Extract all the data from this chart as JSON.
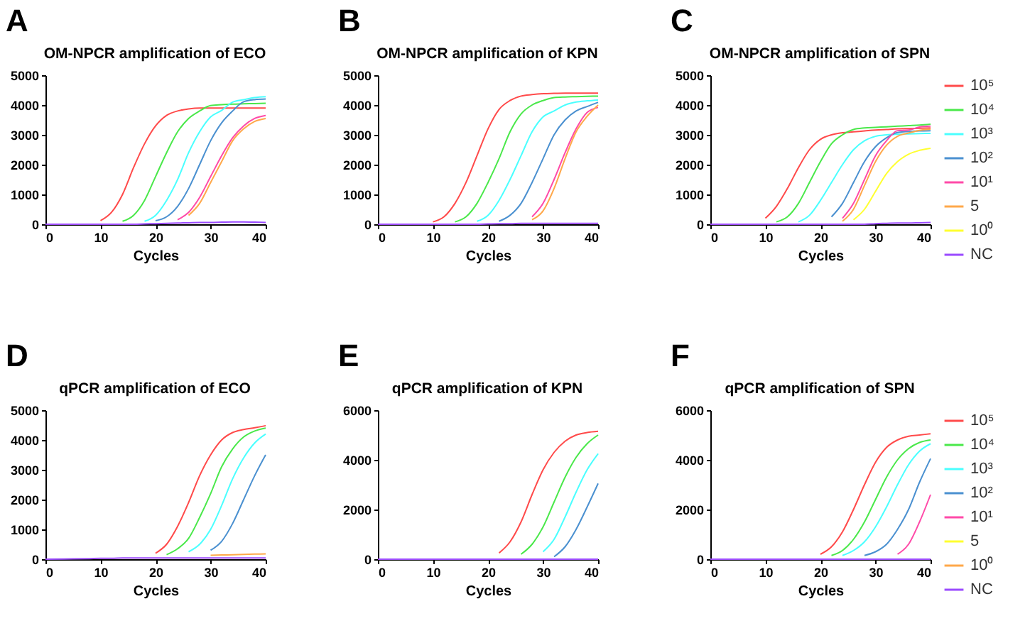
{
  "chart_data": [
    {
      "type": "line",
      "title": "OM-NPCR amplification of ECO",
      "xlabel": "Cycles",
      "annotations": [
        "A"
      ],
      "xlim": [
        0,
        40
      ],
      "xticks": [
        0,
        10,
        20,
        30,
        40
      ],
      "ylim": [
        0,
        5000
      ],
      "yticks": [
        0,
        1000,
        2000,
        3000,
        4000,
        5000
      ],
      "x": [
        0,
        5,
        8,
        10,
        12,
        14,
        16,
        18,
        20,
        22,
        24,
        26,
        28,
        30,
        32,
        34,
        36,
        38,
        40
      ],
      "series": [
        {
          "color": "#ff4a4a",
          "values": [
            null,
            null,
            null,
            120,
            400,
            1000,
            1900,
            2700,
            3300,
            3650,
            3800,
            3870,
            3900,
            3900,
            3900,
            3900,
            3900,
            3900,
            3900
          ]
        },
        {
          "color": "#4ae84a",
          "values": [
            null,
            null,
            null,
            null,
            null,
            100,
            300,
            800,
            1600,
            2400,
            3100,
            3550,
            3800,
            3980,
            4010,
            4030,
            4040,
            4050,
            4060
          ]
        },
        {
          "color": "#4affff",
          "values": [
            null,
            null,
            null,
            null,
            null,
            null,
            null,
            100,
            300,
            800,
            1500,
            2400,
            3100,
            3600,
            3820,
            4100,
            4180,
            4250,
            4280
          ]
        },
        {
          "color": "#4a90d0",
          "values": [
            null,
            null,
            null,
            null,
            null,
            null,
            null,
            null,
            120,
            250,
            600,
            1200,
            2000,
            2800,
            3400,
            3800,
            4110,
            4180,
            4200
          ]
        },
        {
          "color": "#ff4aa8",
          "values": [
            null,
            null,
            null,
            null,
            null,
            null,
            null,
            null,
            null,
            null,
            150,
            400,
            900,
            1600,
            2300,
            2900,
            3300,
            3550,
            3650
          ]
        },
        {
          "color": "#ffa84a",
          "values": [
            null,
            null,
            null,
            null,
            null,
            null,
            null,
            null,
            null,
            null,
            null,
            300,
            700,
            1400,
            2100,
            2800,
            3200,
            3450,
            3550
          ]
        },
        {
          "color": "#9a4aff",
          "values": [
            0,
            0,
            0,
            0,
            0,
            0,
            0,
            10,
            20,
            30,
            40,
            50,
            60,
            60,
            70,
            80,
            80,
            70,
            60
          ]
        }
      ]
    },
    {
      "type": "line",
      "title": "OM-NPCR amplification of KPN",
      "xlabel": "Cycles",
      "annotations": [
        "B"
      ],
      "xlim": [
        0,
        40
      ],
      "xticks": [
        0,
        10,
        20,
        30,
        40
      ],
      "ylim": [
        0,
        5000
      ],
      "yticks": [
        0,
        1000,
        2000,
        3000,
        4000,
        5000
      ],
      "x": [
        0,
        5,
        8,
        10,
        12,
        14,
        16,
        18,
        20,
        22,
        24,
        26,
        28,
        30,
        32,
        34,
        36,
        38,
        40
      ],
      "series": [
        {
          "color": "#ff4a4a",
          "values": [
            null,
            null,
            null,
            80,
            250,
            700,
            1400,
            2300,
            3200,
            3850,
            4150,
            4300,
            4350,
            4380,
            4390,
            4400,
            4400,
            4400,
            4400
          ]
        },
        {
          "color": "#4ae84a",
          "values": [
            null,
            null,
            null,
            null,
            null,
            80,
            250,
            700,
            1400,
            2200,
            3100,
            3700,
            4000,
            4150,
            4250,
            4270,
            4280,
            4290,
            4300
          ]
        },
        {
          "color": "#4affff",
          "values": [
            null,
            null,
            null,
            null,
            null,
            null,
            null,
            100,
            300,
            800,
            1500,
            2300,
            3100,
            3600,
            3800,
            4000,
            4100,
            4140,
            4170
          ]
        },
        {
          "color": "#4a90d0",
          "values": [
            null,
            null,
            null,
            null,
            null,
            null,
            null,
            null,
            null,
            100,
            300,
            700,
            1400,
            2200,
            3000,
            3500,
            3800,
            3950,
            4090
          ]
        },
        {
          "color": "#ff4aa8",
          "values": [
            null,
            null,
            null,
            null,
            null,
            null,
            null,
            null,
            null,
            null,
            null,
            null,
            250,
            700,
            1500,
            2400,
            3200,
            3750,
            3920
          ]
        },
        {
          "color": "#ffa84a",
          "values": [
            null,
            null,
            null,
            null,
            null,
            null,
            null,
            null,
            null,
            null,
            null,
            null,
            150,
            450,
            1200,
            2200,
            3100,
            3620,
            4000
          ]
        },
        {
          "color": "#9a4aff",
          "values": [
            0,
            0,
            0,
            0,
            0,
            0,
            0,
            0,
            10,
            20,
            20,
            30,
            30,
            30,
            30,
            30,
            30,
            30,
            30
          ]
        }
      ]
    },
    {
      "type": "line",
      "title": "OM-NPCR amplification of SPN",
      "xlabel": "Cycles",
      "annotations": [
        "C"
      ],
      "legend": "right",
      "xlim": [
        0,
        40
      ],
      "xticks": [
        0,
        10,
        20,
        30,
        40
      ],
      "ylim": [
        0,
        5000
      ],
      "yticks": [
        0,
        1000,
        2000,
        3000,
        4000,
        5000
      ],
      "x": [
        0,
        5,
        8,
        10,
        12,
        14,
        16,
        18,
        20,
        22,
        24,
        26,
        28,
        30,
        32,
        34,
        36,
        38,
        40
      ],
      "series": [
        {
          "name": "10⁵",
          "color": "#ff4a4a",
          "values": [
            null,
            null,
            null,
            200,
            600,
            1200,
            1900,
            2500,
            2850,
            3000,
            3070,
            3100,
            3130,
            3160,
            3180,
            3200,
            3210,
            3220,
            3230
          ]
        },
        {
          "name": "10⁴",
          "color": "#4ae84a",
          "values": [
            null,
            null,
            null,
            null,
            80,
            250,
            700,
            1400,
            2100,
            2700,
            3000,
            3180,
            3230,
            3250,
            3270,
            3290,
            3310,
            3330,
            3360
          ]
        },
        {
          "name": "10³",
          "color": "#4affff",
          "values": [
            null,
            null,
            null,
            null,
            null,
            null,
            80,
            300,
            800,
            1400,
            2000,
            2500,
            2800,
            2950,
            3000,
            3020,
            3030,
            3040,
            3050
          ]
        },
        {
          "name": "10²",
          "color": "#4a90d0",
          "values": [
            null,
            null,
            null,
            null,
            null,
            null,
            null,
            null,
            null,
            250,
            700,
            1400,
            2100,
            2600,
            2900,
            3080,
            3110,
            3130,
            3140
          ]
        },
        {
          "name": "10¹",
          "color": "#ff4aa8",
          "values": [
            null,
            null,
            null,
            null,
            null,
            null,
            null,
            null,
            null,
            null,
            200,
            700,
            1500,
            2300,
            2800,
            3140,
            3160,
            3260,
            3290
          ]
        },
        {
          "name": "5",
          "color": "#ffa84a",
          "values": [
            null,
            null,
            null,
            null,
            null,
            null,
            null,
            null,
            null,
            null,
            100,
            500,
            1300,
            2100,
            2650,
            2950,
            3060,
            3150,
            3190
          ]
        },
        {
          "name": "10⁰",
          "color": "#ffff30",
          "values": [
            null,
            null,
            null,
            null,
            null,
            null,
            null,
            null,
            null,
            null,
            null,
            150,
            500,
            1100,
            1700,
            2100,
            2350,
            2480,
            2550
          ]
        },
        {
          "name": "NC",
          "color": "#9a4aff",
          "values": [
            0,
            0,
            0,
            0,
            0,
            0,
            0,
            0,
            0,
            0,
            0,
            0,
            0,
            20,
            30,
            40,
            40,
            50,
            60
          ]
        }
      ]
    },
    {
      "type": "line",
      "title": "qPCR amplification of ECO",
      "xlabel": "Cycles",
      "annotations": [
        "D"
      ],
      "xlim": [
        0,
        40
      ],
      "xticks": [
        0,
        10,
        20,
        30,
        40
      ],
      "ylim": [
        0,
        5000
      ],
      "yticks": [
        0,
        1000,
        2000,
        3000,
        4000,
        5000
      ],
      "x": [
        0,
        5,
        8,
        10,
        12,
        14,
        16,
        18,
        20,
        22,
        24,
        26,
        28,
        30,
        32,
        34,
        36,
        38,
        40
      ],
      "series": [
        {
          "color": "#ff4a4a",
          "values": [
            null,
            null,
            null,
            null,
            null,
            null,
            null,
            null,
            200,
            500,
            1100,
            1900,
            2800,
            3500,
            4000,
            4250,
            4350,
            4410,
            4480
          ]
        },
        {
          "color": "#4ae84a",
          "values": [
            null,
            null,
            null,
            null,
            null,
            null,
            null,
            null,
            null,
            150,
            350,
            700,
            1400,
            2200,
            3100,
            3700,
            4100,
            4300,
            4400
          ]
        },
        {
          "color": "#4affff",
          "values": [
            null,
            null,
            null,
            null,
            null,
            null,
            null,
            null,
            null,
            null,
            null,
            250,
            500,
            1000,
            1800,
            2700,
            3400,
            3900,
            4200
          ]
        },
        {
          "color": "#4a90d0",
          "values": [
            null,
            null,
            null,
            null,
            null,
            null,
            null,
            null,
            null,
            null,
            null,
            null,
            null,
            300,
            600,
            1200,
            2000,
            2800,
            3500
          ]
        },
        {
          "color": "#ffa84a",
          "values": [
            null,
            null,
            null,
            null,
            null,
            null,
            null,
            null,
            null,
            null,
            null,
            null,
            null,
            130,
            140,
            150,
            160,
            170,
            180
          ]
        },
        {
          "color": "#9a4aff",
          "values": [
            0,
            10,
            20,
            30,
            30,
            40,
            40,
            40,
            40,
            40,
            40,
            40,
            40,
            40,
            40,
            40,
            40,
            40,
            40
          ]
        }
      ]
    },
    {
      "type": "line",
      "title": "qPCR amplification of KPN",
      "xlabel": "Cycles",
      "annotations": [
        "E"
      ],
      "xlim": [
        0,
        40
      ],
      "xticks": [
        0,
        10,
        20,
        30,
        40
      ],
      "ylim": [
        0,
        6000
      ],
      "yticks": [
        0,
        2000,
        4000,
        6000
      ],
      "x": [
        0,
        5,
        8,
        10,
        12,
        14,
        16,
        18,
        20,
        22,
        24,
        26,
        28,
        30,
        32,
        34,
        36,
        38,
        40
      ],
      "series": [
        {
          "color": "#ff4a4a",
          "values": [
            null,
            null,
            null,
            null,
            null,
            null,
            null,
            null,
            null,
            250,
            700,
            1500,
            2600,
            3600,
            4300,
            4750,
            5000,
            5100,
            5150
          ]
        },
        {
          "color": "#4ae84a",
          "values": [
            null,
            null,
            null,
            null,
            null,
            null,
            null,
            null,
            null,
            null,
            null,
            200,
            600,
            1300,
            2300,
            3300,
            4100,
            4650,
            5000
          ]
        },
        {
          "color": "#4affff",
          "values": [
            null,
            null,
            null,
            null,
            null,
            null,
            null,
            null,
            null,
            null,
            null,
            null,
            null,
            300,
            800,
            1700,
            2700,
            3600,
            4250
          ]
        },
        {
          "color": "#4a90d0",
          "values": [
            null,
            null,
            null,
            null,
            null,
            null,
            null,
            null,
            null,
            null,
            null,
            null,
            null,
            null,
            100,
            500,
            1200,
            2100,
            3050
          ]
        },
        {
          "color": "#9a4aff",
          "values": [
            0,
            0,
            0,
            0,
            0,
            0,
            0,
            0,
            0,
            0,
            0,
            0,
            0,
            0,
            0,
            0,
            0,
            0,
            0
          ]
        }
      ]
    },
    {
      "type": "line",
      "title": "qPCR amplification of SPN",
      "xlabel": "Cycles",
      "annotations": [
        "F"
      ],
      "legend": "right",
      "xlim": [
        0,
        40
      ],
      "xticks": [
        0,
        10,
        20,
        30,
        40
      ],
      "ylim": [
        0,
        6000
      ],
      "yticks": [
        0,
        2000,
        4000,
        6000
      ],
      "x": [
        0,
        5,
        8,
        10,
        12,
        14,
        16,
        18,
        20,
        22,
        24,
        26,
        28,
        30,
        32,
        34,
        36,
        38,
        40
      ],
      "series": [
        {
          "name": "10⁵",
          "color": "#ff4a4a",
          "values": [
            null,
            null,
            null,
            null,
            null,
            null,
            null,
            null,
            200,
            500,
            1100,
            2000,
            3000,
            3900,
            4500,
            4800,
            4950,
            5000,
            5050
          ]
        },
        {
          "name": "10⁴",
          "color": "#4ae84a",
          "values": [
            null,
            null,
            null,
            null,
            null,
            null,
            null,
            null,
            null,
            150,
            350,
            800,
            1500,
            2400,
            3300,
            4000,
            4450,
            4700,
            4800
          ]
        },
        {
          "name": "10³",
          "color": "#4affff",
          "values": [
            null,
            null,
            null,
            null,
            null,
            null,
            null,
            null,
            null,
            null,
            150,
            350,
            700,
            1300,
            2100,
            3000,
            3800,
            4350,
            4650
          ]
        },
        {
          "name": "10²",
          "color": "#4a90d0",
          "values": [
            null,
            null,
            null,
            null,
            null,
            null,
            null,
            null,
            null,
            null,
            null,
            null,
            150,
            300,
            600,
            1200,
            2000,
            3100,
            4050
          ]
        },
        {
          "name": "10¹",
          "color": "#ff4aa8",
          "values": [
            null,
            null,
            null,
            null,
            null,
            null,
            null,
            null,
            null,
            null,
            null,
            null,
            null,
            null,
            null,
            200,
            600,
            1500,
            2600
          ]
        },
        {
          "name": "5",
          "color": "#ffff30",
          "values": [
            null,
            null,
            null,
            null,
            null,
            null,
            null,
            null,
            null,
            null,
            null,
            null,
            null,
            null,
            null,
            null,
            null,
            null,
            null
          ]
        },
        {
          "name": "10⁰",
          "color": "#ffa84a",
          "values": [
            null,
            null,
            null,
            null,
            null,
            null,
            null,
            null,
            null,
            null,
            null,
            null,
            null,
            null,
            null,
            null,
            null,
            null,
            null
          ]
        },
        {
          "name": "NC",
          "color": "#9a4aff",
          "values": [
            0,
            0,
            0,
            0,
            0,
            0,
            0,
            0,
            0,
            0,
            0,
            0,
            0,
            0,
            0,
            0,
            0,
            0,
            0
          ]
        }
      ]
    }
  ]
}
